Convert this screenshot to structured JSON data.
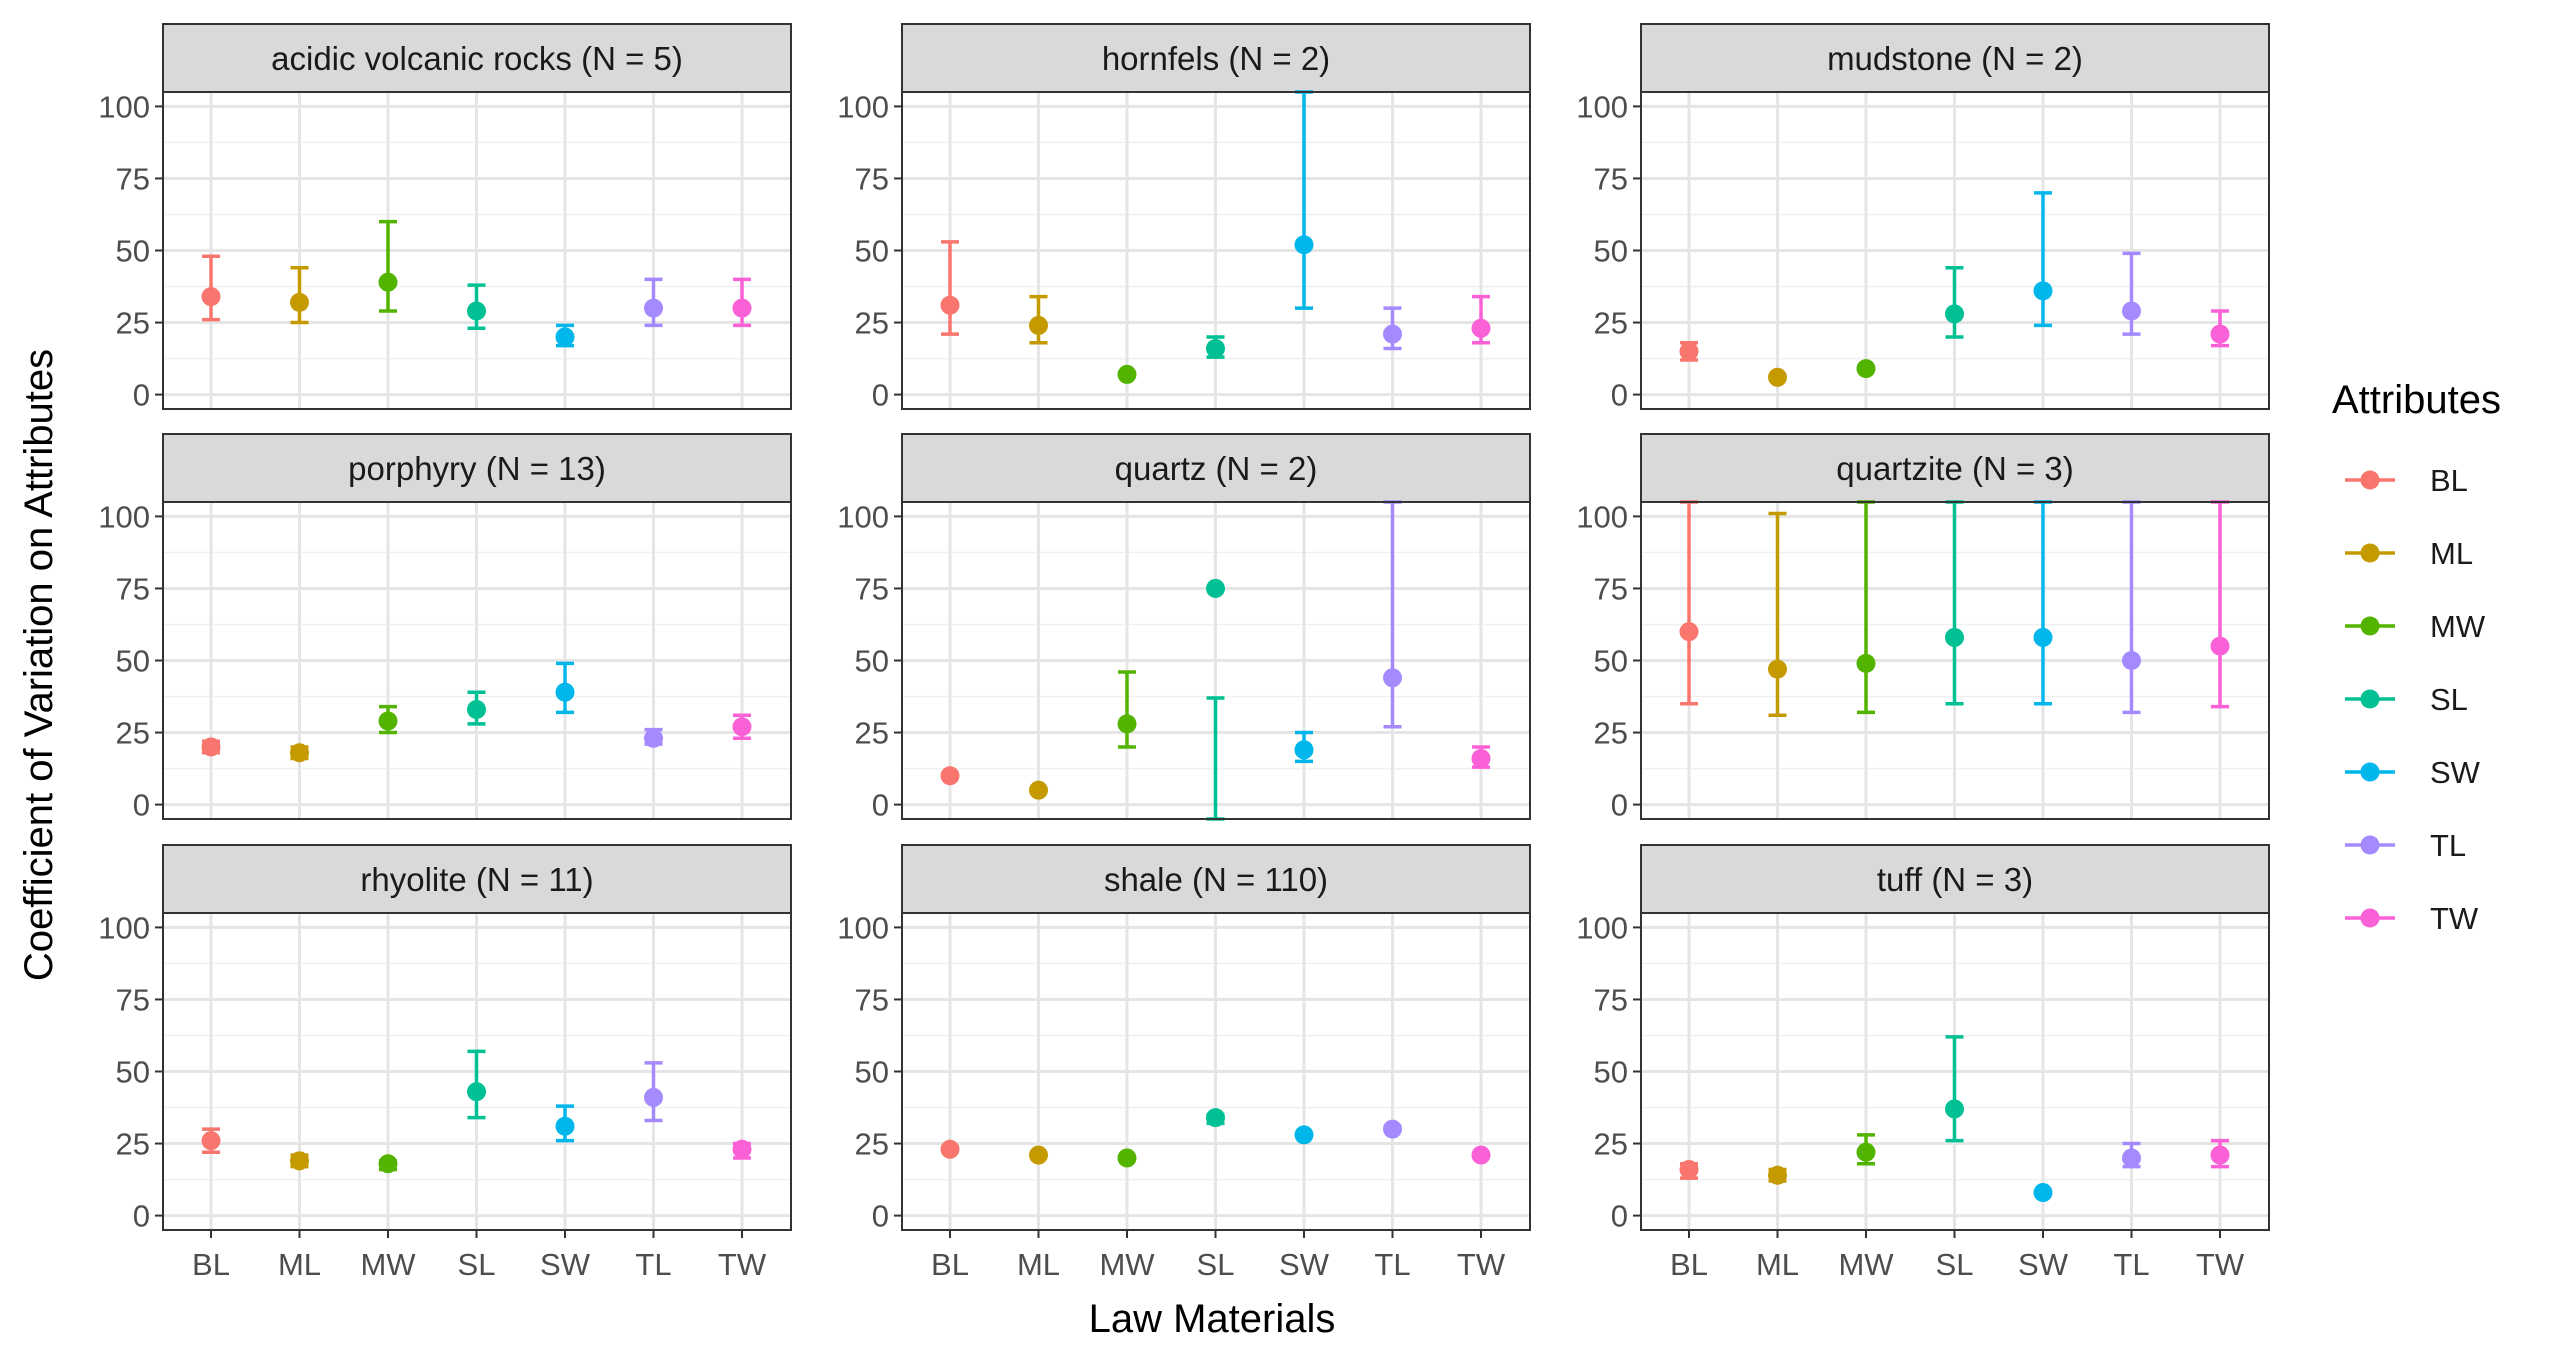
{
  "chart_data": {
    "type": "scatter",
    "subtype": "faceted point-range (point with error bars)",
    "xlabel": "Law Materials",
    "ylabel": "Coefficient of Variation on Attributes",
    "categories": [
      "BL",
      "ML",
      "MW",
      "SL",
      "SW",
      "TL",
      "TW"
    ],
    "y_ticks": [
      0,
      25,
      50,
      75,
      100
    ],
    "ylim": [
      -5,
      105
    ],
    "grid": true,
    "legend": {
      "title": "Attributes",
      "position": "right",
      "entries": [
        "BL",
        "ML",
        "MW",
        "SL",
        "SW",
        "TL",
        "TW"
      ]
    },
    "colors": {
      "BL": "#F8766D",
      "ML": "#C49A00",
      "MW": "#53B400",
      "SL": "#00C094",
      "SW": "#00B6EB",
      "TL": "#A58AFF",
      "TW": "#FB61D7"
    },
    "panels": [
      {
        "title": "acidic volcanic rocks (N = 5)",
        "points": [
          {
            "x": "BL",
            "y": 34,
            "ymin": 26,
            "ymax": 48
          },
          {
            "x": "ML",
            "y": 32,
            "ymin": 25,
            "ymax": 44
          },
          {
            "x": "MW",
            "y": 39,
            "ymin": 29,
            "ymax": 60
          },
          {
            "x": "SL",
            "y": 29,
            "ymin": 23,
            "ymax": 38
          },
          {
            "x": "SW",
            "y": 20,
            "ymin": 17,
            "ymax": 24
          },
          {
            "x": "TL",
            "y": 30,
            "ymin": 24,
            "ymax": 40
          },
          {
            "x": "TW",
            "y": 30,
            "ymin": 24,
            "ymax": 40
          }
        ]
      },
      {
        "title": "hornfels (N = 2)",
        "points": [
          {
            "x": "BL",
            "y": 31,
            "ymin": 21,
            "ymax": 53
          },
          {
            "x": "ML",
            "y": 24,
            "ymin": 18,
            "ymax": 34
          },
          {
            "x": "MW",
            "y": 7,
            "ymin": 7,
            "ymax": 7
          },
          {
            "x": "SL",
            "y": 16,
            "ymin": 13,
            "ymax": 20
          },
          {
            "x": "SW",
            "y": 52,
            "ymin": 30,
            "ymax": 105
          },
          {
            "x": "TL",
            "y": 21,
            "ymin": 16,
            "ymax": 30
          },
          {
            "x": "TW",
            "y": 23,
            "ymin": 18,
            "ymax": 34
          }
        ]
      },
      {
        "title": "mudstone (N = 2)",
        "points": [
          {
            "x": "BL",
            "y": 15,
            "ymin": 12,
            "ymax": 18
          },
          {
            "x": "ML",
            "y": 6,
            "ymin": 6,
            "ymax": 6
          },
          {
            "x": "MW",
            "y": 9,
            "ymin": 9,
            "ymax": 9
          },
          {
            "x": "SL",
            "y": 28,
            "ymin": 20,
            "ymax": 44
          },
          {
            "x": "SW",
            "y": 36,
            "ymin": 24,
            "ymax": 70
          },
          {
            "x": "TL",
            "y": 29,
            "ymin": 21,
            "ymax": 49
          },
          {
            "x": "TW",
            "y": 21,
            "ymin": 17,
            "ymax": 29
          }
        ]
      },
      {
        "title": "porphyry (N = 13)",
        "points": [
          {
            "x": "BL",
            "y": 20,
            "ymin": 18,
            "ymax": 22
          },
          {
            "x": "ML",
            "y": 18,
            "ymin": 16,
            "ymax": 20
          },
          {
            "x": "MW",
            "y": 29,
            "ymin": 25,
            "ymax": 34
          },
          {
            "x": "SL",
            "y": 33,
            "ymin": 28,
            "ymax": 39
          },
          {
            "x": "SW",
            "y": 39,
            "ymin": 32,
            "ymax": 49
          },
          {
            "x": "TL",
            "y": 23,
            "ymin": 21,
            "ymax": 26
          },
          {
            "x": "TW",
            "y": 27,
            "ymin": 23,
            "ymax": 31
          }
        ]
      },
      {
        "title": "quartz (N = 2)",
        "points": [
          {
            "x": "BL",
            "y": 10,
            "ymin": 10,
            "ymax": 10
          },
          {
            "x": "ML",
            "y": 5,
            "ymin": 5,
            "ymax": 5
          },
          {
            "x": "MW",
            "y": 28,
            "ymin": 20,
            "ymax": 46
          },
          {
            "x": "SL",
            "y": 75,
            "ymin": -5,
            "ymax": 37
          },
          {
            "x": "SW",
            "y": 19,
            "ymin": 15,
            "ymax": 25
          },
          {
            "x": "TL",
            "y": 44,
            "ymin": 27,
            "ymax": 105
          },
          {
            "x": "TW",
            "y": 16,
            "ymin": 13,
            "ymax": 20
          }
        ]
      },
      {
        "title": "quartzite (N = 3)",
        "points": [
          {
            "x": "BL",
            "y": 60,
            "ymin": 35,
            "ymax": 105
          },
          {
            "x": "ML",
            "y": 47,
            "ymin": 31,
            "ymax": 101
          },
          {
            "x": "MW",
            "y": 49,
            "ymin": 32,
            "ymax": 105
          },
          {
            "x": "SL",
            "y": 58,
            "ymin": 35,
            "ymax": 105
          },
          {
            "x": "SW",
            "y": 58,
            "ymin": 35,
            "ymax": 105
          },
          {
            "x": "TL",
            "y": 50,
            "ymin": 32,
            "ymax": 105
          },
          {
            "x": "TW",
            "y": 55,
            "ymin": 34,
            "ymax": 105
          }
        ]
      },
      {
        "title": "rhyolite (N = 11)",
        "points": [
          {
            "x": "BL",
            "y": 26,
            "ymin": 22,
            "ymax": 30
          },
          {
            "x": "ML",
            "y": 19,
            "ymin": 17,
            "ymax": 21
          },
          {
            "x": "MW",
            "y": 18,
            "ymin": 16,
            "ymax": 19
          },
          {
            "x": "SL",
            "y": 43,
            "ymin": 34,
            "ymax": 57
          },
          {
            "x": "SW",
            "y": 31,
            "ymin": 26,
            "ymax": 38
          },
          {
            "x": "TL",
            "y": 41,
            "ymin": 33,
            "ymax": 53
          },
          {
            "x": "TW",
            "y": 23,
            "ymin": 20,
            "ymax": 25
          }
        ]
      },
      {
        "title": "shale (N = 110)",
        "points": [
          {
            "x": "BL",
            "y": 23,
            "ymin": 23,
            "ymax": 23
          },
          {
            "x": "ML",
            "y": 21,
            "ymin": 21,
            "ymax": 21
          },
          {
            "x": "MW",
            "y": 20,
            "ymin": 20,
            "ymax": 20
          },
          {
            "x": "SL",
            "y": 34,
            "ymin": 32,
            "ymax": 35
          },
          {
            "x": "SW",
            "y": 28,
            "ymin": 28,
            "ymax": 28
          },
          {
            "x": "TL",
            "y": 30,
            "ymin": 30,
            "ymax": 31
          },
          {
            "x": "TW",
            "y": 21,
            "ymin": 21,
            "ymax": 21
          }
        ]
      },
      {
        "title": "tuff (N = 3)",
        "points": [
          {
            "x": "BL",
            "y": 16,
            "ymin": 13,
            "ymax": 18
          },
          {
            "x": "ML",
            "y": 14,
            "ymin": 12,
            "ymax": 16
          },
          {
            "x": "MW",
            "y": 22,
            "ymin": 18,
            "ymax": 28
          },
          {
            "x": "SL",
            "y": 37,
            "ymin": 26,
            "ymax": 62
          },
          {
            "x": "SW",
            "y": 8,
            "ymin": 8,
            "ymax": 8
          },
          {
            "x": "TL",
            "y": 20,
            "ymin": 17,
            "ymax": 25
          },
          {
            "x": "TW",
            "y": 21,
            "ymin": 17,
            "ymax": 26
          }
        ]
      }
    ]
  }
}
